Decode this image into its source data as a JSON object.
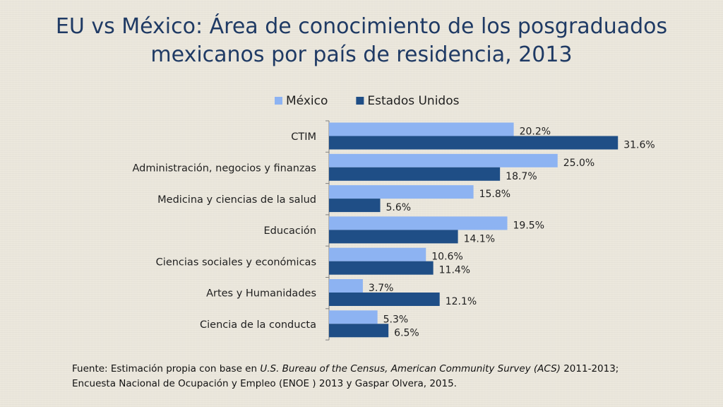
{
  "title": {
    "line1": "EU vs México: Área de conocimiento de los posgraduados",
    "line2": "mexicanos por país de residencia, 2013"
  },
  "colors": {
    "mexico": "#8db3f2",
    "estados_unidos": "#1f4e86",
    "title": "#1f3a64",
    "axis": "#7f7f7f"
  },
  "chart_data": {
    "type": "bar",
    "orientation": "horizontal",
    "title": "",
    "xlabel": "",
    "ylabel": "",
    "xlim": [
      0,
      40
    ],
    "grid": false,
    "legend_position": "top",
    "value_suffix": "%",
    "categories": [
      "CTIM",
      "Administración, negocios y finanzas",
      "Medicina y ciencias de la salud",
      "Educación",
      "Ciencias sociales y económicas",
      "Artes y Humanidades",
      "Ciencia de la conducta"
    ],
    "series": [
      {
        "name": "México",
        "color": "#8db3f2",
        "values": [
          20.2,
          25.0,
          15.8,
          19.5,
          10.6,
          3.7,
          5.3
        ]
      },
      {
        "name": "Estados Unidos",
        "color": "#1f4e86",
        "values": [
          31.6,
          18.7,
          5.6,
          14.1,
          11.4,
          12.1,
          6.5
        ]
      }
    ]
  },
  "footnote": {
    "prefix": "Fuente: Estimación propia con base en ",
    "italic": "U.S. Bureau of the Census, American Community Survey (ACS)",
    "suffix": " 2011-2013;",
    "line2": "Encuesta Nacional de Ocupación y Empleo (ENOE ) 2013 y Gaspar Olvera, 2015."
  }
}
